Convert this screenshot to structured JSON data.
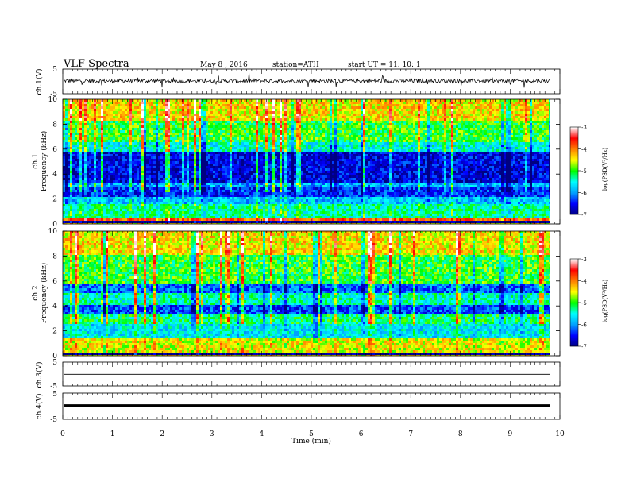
{
  "header": {
    "title": "VLF  Spectra",
    "date": "May 8  , 2016",
    "station": "station=ATH",
    "start_ut": "start  UT  =    11: 10: 1"
  },
  "chart_data": [
    {
      "type": "line",
      "name": "channel-1-waveform",
      "ylabel": "ch.1(V)",
      "ylim": [
        -5,
        5
      ],
      "yticks": [
        "5",
        "-5"
      ],
      "xlim": [
        0,
        10
      ],
      "data_end_min": 9.8
    },
    {
      "type": "heatmap",
      "name": "channel-1-spectrogram",
      "ylabel_channel": "ch.1",
      "ylabel": "Frequency  (kHz)",
      "ylim": [
        0,
        10
      ],
      "yticks": [
        "0",
        "2",
        "4",
        "6",
        "8",
        "10"
      ],
      "xlim": [
        0,
        10
      ],
      "data_end_min": 9.8,
      "colorbar": {
        "label": "log(PSD(V²/Hz)",
        "ticks": [
          "-3",
          "-4",
          "-5",
          "-6",
          "-7"
        ],
        "range": [
          -7,
          -3
        ]
      },
      "bands": [
        {
          "f_khz": [
            0,
            0.3
          ],
          "value": -7
        },
        {
          "f_khz": [
            0.3,
            0.5
          ],
          "value": -3.8
        },
        {
          "f_khz": [
            0.5,
            1.5
          ],
          "value": -5.3
        },
        {
          "f_khz": [
            1.5,
            2.1
          ],
          "value": -5.8
        },
        {
          "f_khz": [
            2.1,
            3.0
          ],
          "value": -6.4
        },
        {
          "f_khz": [
            3.0,
            3.3
          ],
          "value": -5.9
        },
        {
          "f_khz": [
            3.3,
            5.8
          ],
          "value": -6.6
        },
        {
          "f_khz": [
            5.8,
            6.6
          ],
          "value": -5.5
        },
        {
          "f_khz": [
            6.6,
            8.2
          ],
          "value": -5.0
        },
        {
          "f_khz": [
            8.2,
            10
          ],
          "value": -4.4
        }
      ]
    },
    {
      "type": "heatmap",
      "name": "channel-2-spectrogram",
      "ylabel_channel": "ch.2",
      "ylabel": "Frequency  (kHz)",
      "ylim": [
        0,
        10
      ],
      "yticks": [
        "0",
        "2",
        "4",
        "6",
        "8",
        "10"
      ],
      "xlim": [
        0,
        10
      ],
      "data_end_min": 9.8,
      "colorbar": {
        "label": "log(PSD(V²/Hz)",
        "ticks": [
          "-3",
          "-4",
          "-5",
          "-6",
          "-7"
        ],
        "range": [
          -7,
          -3
        ]
      },
      "bands": [
        {
          "f_khz": [
            0,
            0.3
          ],
          "value": -7
        },
        {
          "f_khz": [
            0.3,
            1.4
          ],
          "value": -4.5
        },
        {
          "f_khz": [
            1.4,
            2.6
          ],
          "value": -5.6
        },
        {
          "f_khz": [
            2.6,
            3.4
          ],
          "value": -5.2
        },
        {
          "f_khz": [
            3.4,
            4.0
          ],
          "value": -6.3
        },
        {
          "f_khz": [
            4.0,
            5.0
          ],
          "value": -5.4
        },
        {
          "f_khz": [
            5.0,
            5.8
          ],
          "value": -6.2
        },
        {
          "f_khz": [
            5.8,
            8.0
          ],
          "value": -5.0
        },
        {
          "f_khz": [
            8.0,
            10
          ],
          "value": -4.4
        }
      ]
    },
    {
      "type": "line",
      "name": "channel-3-waveform",
      "ylabel": "ch.3(V)",
      "ylim": [
        -5,
        5
      ],
      "yticks": [
        "5",
        "-5"
      ],
      "xlim": [
        0,
        10
      ],
      "data_end_min": 9.8,
      "level": -0.1
    },
    {
      "type": "line",
      "name": "channel-4-waveform",
      "ylabel": "ch.4(V)",
      "ylim": [
        -5,
        5
      ],
      "yticks": [
        "5",
        "-5"
      ],
      "xlim": [
        0,
        10
      ],
      "data_end_min": 9.8,
      "level": 0.2
    }
  ],
  "xaxis": {
    "label": "Time  (min)",
    "ticks": [
      "0",
      "1",
      "2",
      "3",
      "4",
      "5",
      "6",
      "7",
      "8",
      "9",
      "10"
    ]
  },
  "colors": {
    "colormap": [
      "#000080",
      "#0000ff",
      "#00a0ff",
      "#00ffff",
      "#00ff00",
      "#ffff00",
      "#ff8000",
      "#ff0000",
      "#ffffff"
    ]
  }
}
